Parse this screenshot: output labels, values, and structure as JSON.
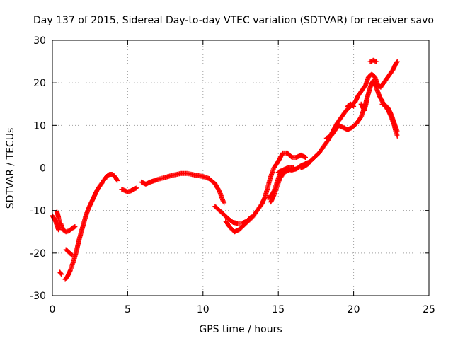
{
  "chart_data": {
    "type": "scatter",
    "title": "Day 137 of 2015, Sidereal Day-to-day VTEC variation (SDTVAR) for receiver savo",
    "xlabel": "GPS time / hours",
    "ylabel": "SDTVAR / TECUs",
    "xlim": [
      0,
      25
    ],
    "ylim": [
      -30,
      30
    ],
    "x_ticks": [
      0,
      5,
      10,
      15,
      20,
      25
    ],
    "y_ticks": [
      -30,
      -20,
      -10,
      0,
      10,
      20,
      30
    ],
    "x_tick_labels": [
      "0",
      "5",
      "10",
      "15",
      "20",
      "25"
    ],
    "y_tick_labels": [
      "-30",
      "-20",
      "-10",
      "0",
      "10",
      "20",
      "30"
    ],
    "grid": true,
    "marker": "+",
    "series": [
      {
        "name": "SDTVAR",
        "color": "#ff0000",
        "segments": [
          [
            [
              0.0,
              -11.2
            ],
            [
              0.2,
              -12.4
            ],
            [
              0.4,
              -14.5
            ],
            [
              0.55,
              -13.0
            ],
            [
              0.7,
              -14.5
            ],
            [
              0.9,
              -15.0
            ],
            [
              1.1,
              -14.8
            ],
            [
              1.3,
              -14.2
            ],
            [
              1.5,
              -13.8
            ]
          ],
          [
            [
              0.3,
              -10.2
            ],
            [
              0.4,
              -11.5
            ],
            [
              0.5,
              -13.2
            ]
          ],
          [
            [
              0.5,
              -24.5
            ],
            [
              0.6,
              -25.0
            ]
          ],
          [
            [
              0.9,
              -19.2
            ],
            [
              1.1,
              -19.8
            ],
            [
              1.3,
              -20.5
            ]
          ],
          [
            [
              0.85,
              -26.2
            ],
            [
              1.0,
              -25.5
            ],
            [
              1.2,
              -24.0
            ],
            [
              1.4,
              -22.0
            ],
            [
              1.6,
              -19.5
            ],
            [
              1.8,
              -16.5
            ],
            [
              2.0,
              -14.0
            ],
            [
              2.2,
              -11.5
            ],
            [
              2.4,
              -9.5
            ],
            [
              2.6,
              -8.0
            ],
            [
              2.8,
              -6.5
            ],
            [
              3.0,
              -5.0
            ],
            [
              3.2,
              -4.0
            ],
            [
              3.4,
              -3.0
            ],
            [
              3.6,
              -2.0
            ],
            [
              3.8,
              -1.5
            ],
            [
              4.0,
              -1.5
            ],
            [
              4.2,
              -2.2
            ],
            [
              4.3,
              -3.0
            ]
          ],
          [
            [
              4.6,
              -5.0
            ],
            [
              4.8,
              -5.3
            ],
            [
              5.0,
              -5.6
            ],
            [
              5.2,
              -5.4
            ],
            [
              5.4,
              -5.0
            ],
            [
              5.6,
              -4.7
            ]
          ],
          [
            [
              5.9,
              -3.3
            ],
            [
              6.2,
              -3.8
            ],
            [
              6.5,
              -3.3
            ],
            [
              7.0,
              -2.7
            ],
            [
              7.5,
              -2.2
            ],
            [
              8.0,
              -1.7
            ],
            [
              8.5,
              -1.3
            ],
            [
              9.0,
              -1.3
            ],
            [
              9.5,
              -1.7
            ],
            [
              10.0,
              -2.0
            ],
            [
              10.4,
              -2.5
            ],
            [
              10.8,
              -3.7
            ],
            [
              11.1,
              -5.5
            ],
            [
              11.3,
              -7.5
            ],
            [
              11.4,
              -8.2
            ]
          ],
          [
            [
              10.8,
              -9.0
            ],
            [
              11.1,
              -10.0
            ],
            [
              11.4,
              -11.0
            ],
            [
              11.7,
              -12.0
            ],
            [
              12.0,
              -12.8
            ],
            [
              12.3,
              -13.0
            ],
            [
              12.6,
              -13.0
            ],
            [
              12.9,
              -12.5
            ],
            [
              13.2,
              -11.5
            ]
          ],
          [
            [
              11.5,
              -12.5
            ],
            [
              11.8,
              -14.0
            ],
            [
              12.1,
              -15.0
            ],
            [
              12.4,
              -14.5
            ],
            [
              12.7,
              -13.5
            ],
            [
              13.0,
              -12.5
            ],
            [
              13.3,
              -11.5
            ],
            [
              13.6,
              -10.0
            ],
            [
              13.9,
              -8.5
            ],
            [
              14.1,
              -7.0
            ],
            [
              14.3,
              -4.5
            ],
            [
              14.5,
              -2.0
            ],
            [
              14.7,
              0.0
            ],
            [
              14.9,
              1.0
            ],
            [
              15.1,
              2.2
            ],
            [
              15.3,
              3.5
            ],
            [
              15.6,
              3.5
            ],
            [
              15.9,
              2.5
            ],
            [
              16.2,
              2.5
            ],
            [
              16.5,
              3.0
            ],
            [
              16.8,
              2.5
            ]
          ],
          [
            [
              14.3,
              -7.0
            ],
            [
              14.5,
              -6.8
            ],
            [
              14.7,
              -5.5
            ],
            [
              14.9,
              -3.5
            ],
            [
              15.1,
              -1.5
            ],
            [
              15.3,
              -0.5
            ],
            [
              15.6,
              -0.3
            ],
            [
              15.9,
              -0.5
            ],
            [
              16.2,
              -0.2
            ],
            [
              16.5,
              0.5
            ],
            [
              16.8,
              1.0
            ],
            [
              17.1,
              1.5
            ],
            [
              17.4,
              2.5
            ],
            [
              17.7,
              3.5
            ],
            [
              18.0,
              5.0
            ],
            [
              18.3,
              6.5
            ],
            [
              18.6,
              8.5
            ],
            [
              18.9,
              10.5
            ],
            [
              19.2,
              12.0
            ],
            [
              19.5,
              13.5
            ],
            [
              19.8,
              14.5
            ],
            [
              20.1,
              15.5
            ],
            [
              20.3,
              17.0
            ],
            [
              20.5,
              18.0
            ],
            [
              20.8,
              19.5
            ],
            [
              21.0,
              21.5
            ],
            [
              21.2,
              22.0
            ],
            [
              21.4,
              21.5
            ],
            [
              21.6,
              19.5
            ],
            [
              21.8,
              19.0
            ],
            [
              22.0,
              20.0
            ],
            [
              22.3,
              21.5
            ],
            [
              22.6,
              23.0
            ],
            [
              22.8,
              24.5
            ],
            [
              22.9,
              25.0
            ]
          ],
          [
            [
              14.5,
              -8.0
            ],
            [
              14.7,
              -6.5
            ],
            [
              14.9,
              -4.5
            ],
            [
              15.1,
              -2.5
            ],
            [
              15.4,
              -1.0
            ],
            [
              15.7,
              -0.5
            ]
          ],
          [
            [
              15.0,
              -1.0
            ],
            [
              15.3,
              -0.5
            ],
            [
              15.6,
              0.0
            ],
            [
              16.0,
              0.0
            ]
          ],
          [
            [
              16.5,
              0.0
            ],
            [
              16.8,
              0.5
            ],
            [
              17.0,
              1.0
            ]
          ],
          [
            [
              18.2,
              7.0
            ],
            [
              18.5,
              7.5
            ],
            [
              18.8,
              9.0
            ],
            [
              19.0,
              10.0
            ],
            [
              19.3,
              9.5
            ],
            [
              19.6,
              9.0
            ],
            [
              19.9,
              9.5
            ],
            [
              20.2,
              10.5
            ],
            [
              20.5,
              12.0
            ],
            [
              20.7,
              14.0
            ],
            [
              20.9,
              16.5
            ],
            [
              21.1,
              19.0
            ],
            [
              21.3,
              20.5
            ],
            [
              21.5,
              19.0
            ],
            [
              21.7,
              17.0
            ],
            [
              22.0,
              15.0
            ],
            [
              22.3,
              13.5
            ],
            [
              22.5,
              12.0
            ],
            [
              22.7,
              10.0
            ],
            [
              22.8,
              8.5
            ],
            [
              22.9,
              7.5
            ]
          ],
          [
            [
              21.9,
              15.0
            ],
            [
              22.1,
              14.8
            ],
            [
              22.3,
              14.0
            ],
            [
              22.5,
              12.5
            ],
            [
              22.7,
              10.5
            ],
            [
              22.9,
              8.5
            ]
          ],
          [
            [
              21.1,
              25.0
            ],
            [
              21.3,
              25.3
            ],
            [
              21.5,
              25.0
            ]
          ],
          [
            [
              19.6,
              14.5
            ],
            [
              19.8,
              15.0
            ],
            [
              20.0,
              14.5
            ]
          ],
          [
            [
              20.5,
              15.0
            ],
            [
              20.7,
              13.5
            ],
            [
              20.9,
              16.0
            ]
          ]
        ]
      }
    ]
  }
}
